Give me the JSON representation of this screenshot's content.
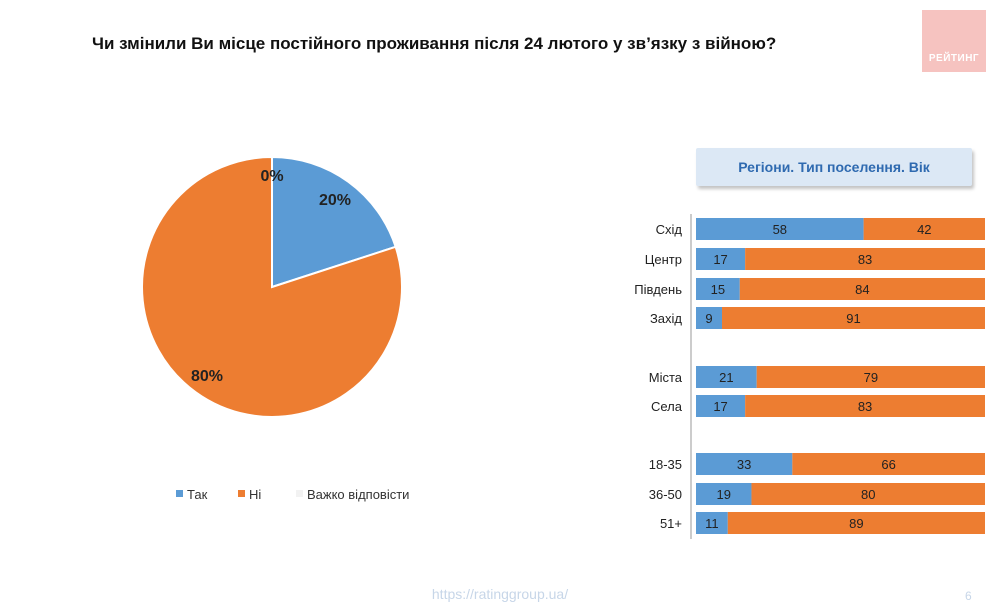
{
  "title": "Чи змінили Ви місце постійного проживання після  24 лютого у зв’язку з війною?",
  "logo_text": "РЕЙТИНГ",
  "panel_title": "Регіони. Тип поселення. Вік",
  "footer_url": "https://ratinggroup.ua/",
  "page_number": "6",
  "colors": {
    "yes": "#5b9bd5",
    "no": "#ed7d31",
    "hard": "#f2f2f2"
  },
  "chart_data": [
    {
      "type": "pie",
      "slices": [
        {
          "name": "Так",
          "value": 20,
          "label": "20%"
        },
        {
          "name": "Ні",
          "value": 80,
          "label": "80%"
        },
        {
          "name": "Важко відповісти",
          "value": 0,
          "label": "0%"
        }
      ],
      "legend": [
        "Так",
        "Ні",
        "Важко відповісти"
      ],
      "legend_position": "bottom"
    },
    {
      "type": "bar",
      "orientation": "horizontal",
      "stacked": true,
      "groups": [
        {
          "categories": [
            "Схід",
            "Центр",
            "Південь",
            "Захід"
          ]
        },
        {
          "categories": [
            "Міста",
            "Села"
          ]
        },
        {
          "categories": [
            "18-35",
            "36-50",
            "51+"
          ]
        }
      ],
      "categories": [
        "Схід",
        "Центр",
        "Південь",
        "Захід",
        "Міста",
        "Села",
        "18-35",
        "36-50",
        "51+"
      ],
      "series": [
        {
          "name": "Так",
          "values": [
            58,
            17,
            15,
            9,
            21,
            17,
            33,
            19,
            11
          ]
        },
        {
          "name": "Ні",
          "values": [
            42,
            83,
            84,
            91,
            79,
            83,
            66,
            80,
            89
          ]
        }
      ],
      "xlim": [
        0,
        100
      ]
    }
  ]
}
